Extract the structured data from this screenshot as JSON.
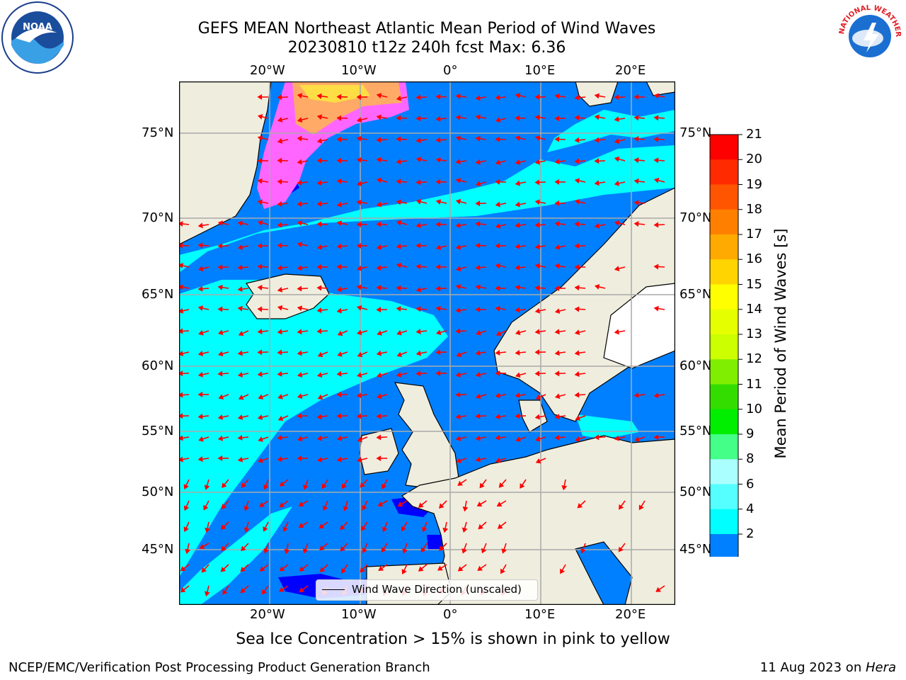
{
  "title_line1": "GEFS MEAN Northeast Atlantic Mean Period of Wind Waves",
  "title_line2": "20230810 t12z 240h fcst   Max: 6.36",
  "caption": "Sea Ice Concentration > 15% is shown in pink to yellow",
  "footer_left": "NCEP/EMC/Verification Post Processing Product Generation Branch",
  "footer_right_date": "11 Aug 2023 on ",
  "footer_right_host": "Hera",
  "legend_label": "Wind Wave Direction (unscaled)",
  "logos": {
    "noaa": "NOAA",
    "nws": "NATIONAL WEATHER SERVICE"
  },
  "colorbar": {
    "label": "Mean Period of Wind Waves [s]",
    "ticks": [
      "21",
      "20",
      "19",
      "18",
      "17",
      "16",
      "15",
      "14",
      "13",
      "12",
      "11",
      "10",
      "9",
      "8",
      "6",
      "4",
      "2"
    ],
    "colors": [
      "#ff0000",
      "#ff2a00",
      "#ff5500",
      "#ff8000",
      "#ffaa00",
      "#ffd400",
      "#ffff00",
      "#e6ff00",
      "#ccff00",
      "#80ee00",
      "#33dd00",
      "#00ee00",
      "#44ff88",
      "#aaffff",
      "#55ffff",
      "#00ffff",
      "#0080ff"
    ],
    "under_color": "#0000ff"
  },
  "axes": {
    "lon_labels": [
      "20°W",
      "10°W",
      "0°",
      "10°E",
      "20°E"
    ],
    "lat_labels": [
      "75°N",
      "70°N",
      "65°N",
      "60°N",
      "55°N",
      "50°N",
      "45°N"
    ]
  },
  "colors": {
    "ocean_main": "#0080ff",
    "ocean_cyan": "#00ffff",
    "land": "#efedde",
    "arrow": "#ff0000",
    "grid": "#aaaaaa"
  }
}
